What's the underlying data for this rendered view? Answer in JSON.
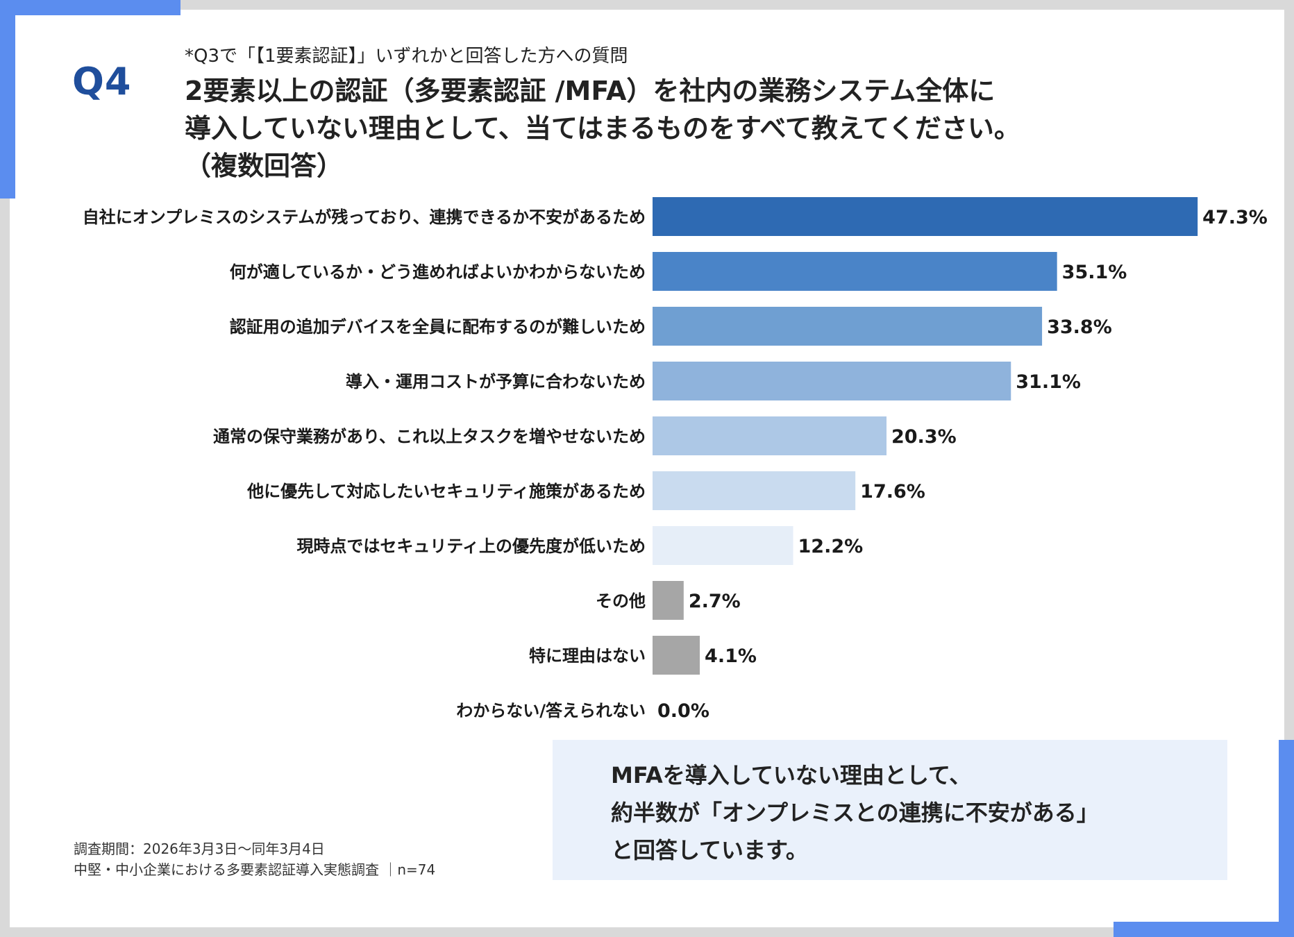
{
  "question": {
    "number": "Q4",
    "note": "*Q3で「【1要素認証】」いずれかと回答した方への質問",
    "title_lines": [
      "2要素以上の認証（多要素認証 /MFA）を社内の業務システム全体に",
      "導入していない理由として、当てはまるものをすべて教えてください。",
      "（複数回答）"
    ]
  },
  "chart_data": {
    "type": "bar",
    "orientation": "horizontal",
    "categories": [
      "自社にオンプレミスのシステムが残っており、連携できるか不安があるため",
      "何が適しているか・どう進めればよいかわからないため",
      "認証用の追加デバイスを全員に配布するのが難しいため",
      "導入・運用コストが予算に合わないため",
      "通常の保守業務があり、これ以上タスクを増やせないため",
      "他に優先して対応したいセキュリティ施策があるため",
      "現時点ではセキュリティ上の優先度が低いため",
      "その他",
      "特に理由はない",
      "わからない/答えられない"
    ],
    "values": [
      47.3,
      35.1,
      33.8,
      31.1,
      20.3,
      17.6,
      12.2,
      2.7,
      4.1,
      0.0
    ],
    "value_labels": [
      "47.3%",
      "35.1%",
      "33.8%",
      "31.1%",
      "20.3%",
      "17.6%",
      "12.2%",
      "2.7%",
      "4.1%",
      "0.0%"
    ],
    "colors": [
      "#2e6ab3",
      "#4a84c8",
      "#6f9fd2",
      "#8fb3dc",
      "#adc8e6",
      "#c9dbef",
      "#e6eef8",
      "#a6a6a6",
      "#a6a6a6",
      "#a6a6a6"
    ],
    "xlim": [
      0,
      50
    ],
    "grid": false,
    "legend": "none"
  },
  "callout": {
    "lines": [
      "MFAを導入していない理由として、",
      "約半数が「オンプレミスとの連携に不安がある」",
      "と回答しています。"
    ]
  },
  "footer": {
    "period": "調査期間：2026年3月3日～同年3月4日",
    "survey": "中堅・中小企業における多要素認証導入実態調査 ｜n=74"
  }
}
